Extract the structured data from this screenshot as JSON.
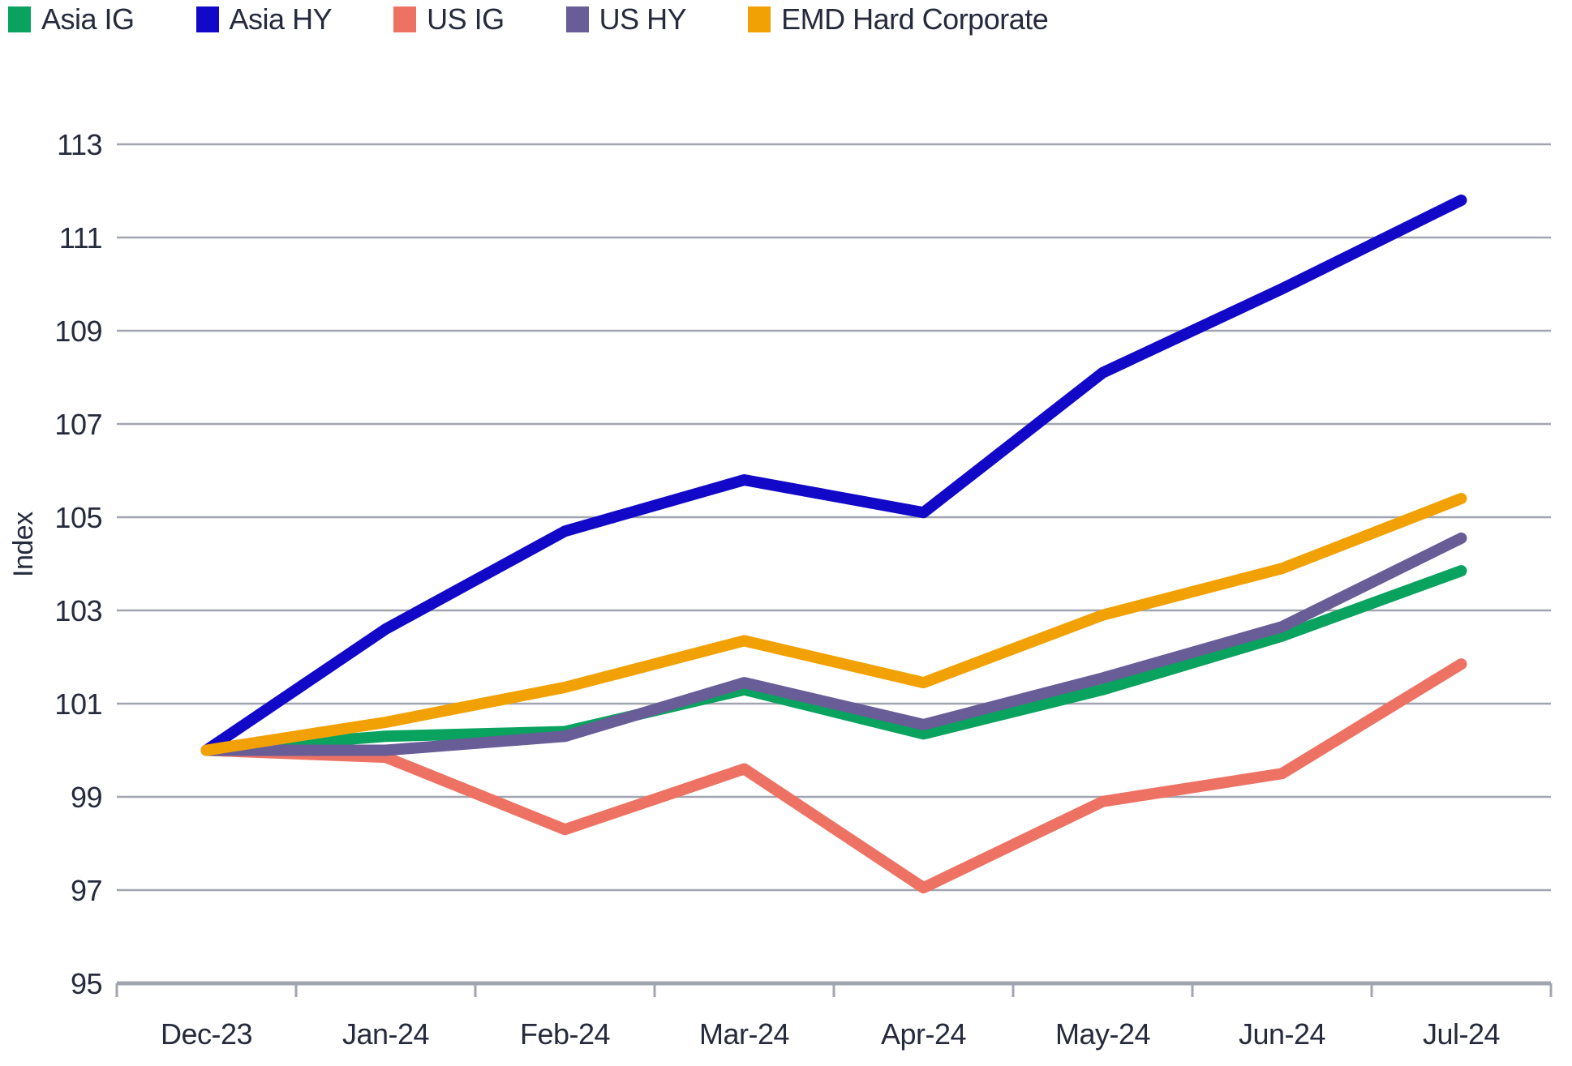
{
  "chart_data": {
    "type": "line",
    "title": "",
    "xlabel": "",
    "ylabel": "Index",
    "categories": [
      "Dec-23",
      "Jan-24",
      "Feb-24",
      "Mar-24",
      "Apr-24",
      "May-24",
      "Jun-24",
      "Jul-24"
    ],
    "series": [
      {
        "name": "Asia IG",
        "color": "#0aa25f",
        "values": [
          100,
          100.3,
          100.4,
          101.3,
          100.35,
          101.3,
          102.45,
          103.85
        ]
      },
      {
        "name": "Asia HY",
        "color": "#1208c8",
        "values": [
          100,
          102.6,
          104.7,
          105.8,
          105.1,
          108.1,
          109.9,
          111.8
        ]
      },
      {
        "name": "US IG",
        "color": "#ed7264",
        "values": [
          100,
          99.85,
          98.3,
          99.6,
          97.05,
          98.9,
          99.5,
          101.85
        ]
      },
      {
        "name": "US HY",
        "color": "#685d97",
        "values": [
          100,
          100.0,
          100.3,
          101.45,
          100.55,
          101.55,
          102.65,
          104.55
        ]
      },
      {
        "name": "EMD Hard Corporate",
        "color": "#f2a104",
        "values": [
          100,
          100.6,
          101.35,
          102.35,
          101.45,
          102.9,
          103.9,
          105.4
        ]
      }
    ],
    "ylim": [
      95,
      113
    ],
    "ytick_step": 2,
    "y_tick_labels": [
      "95",
      "97",
      "99",
      "101",
      "103",
      "105",
      "107",
      "109",
      "111",
      "113"
    ],
    "grid": "horizontal",
    "legend_position": "top-left",
    "grid_color": "#a1a5b0",
    "axis_color": "#a1a5b0",
    "text_color": "#252a3c",
    "background_color": "#ffffff"
  }
}
